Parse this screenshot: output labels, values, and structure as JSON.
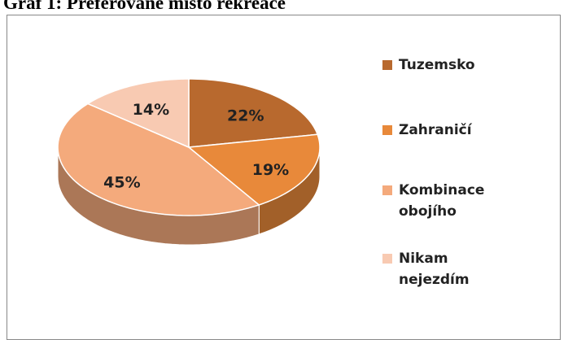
{
  "chart_data": {
    "type": "pie",
    "title": "Graf 1: Preferované místo rekreace",
    "categories": [
      "Tuzemsko",
      "Zahraničí",
      "Kombinace obojího",
      "Nikam nejezdím"
    ],
    "values": [
      22,
      19,
      45,
      14
    ],
    "value_labels": [
      "22%",
      "19%",
      "45%",
      "14%"
    ],
    "colors": [
      "#b8692e",
      "#e8893a",
      "#f4aa7c",
      "#f8cab2"
    ],
    "legend": "right"
  }
}
